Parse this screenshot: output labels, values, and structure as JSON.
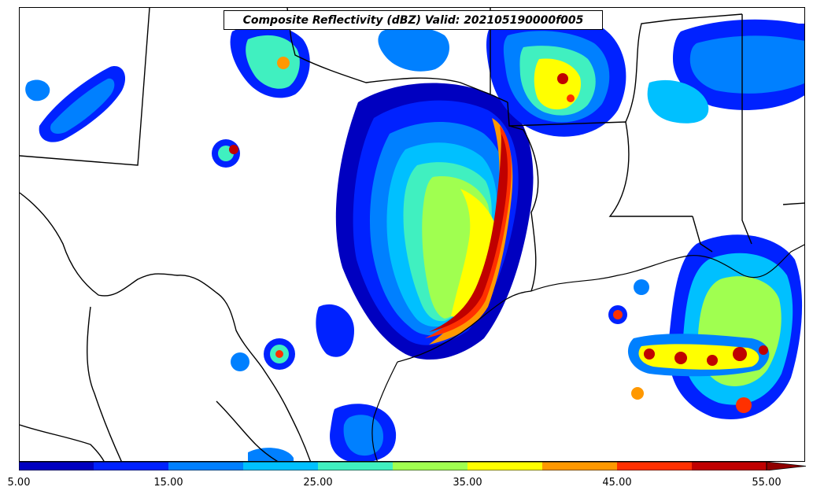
{
  "title": "Composite Reflectivity (dBZ) Valid: 202105190000f005",
  "colorbar": {
    "min": 5,
    "max": 60,
    "extend": "max",
    "bins": [
      {
        "from": 5,
        "to": 10,
        "color": "#0000c0"
      },
      {
        "from": 10,
        "to": 15,
        "color": "#0022ff"
      },
      {
        "from": 15,
        "to": 20,
        "color": "#0080ff"
      },
      {
        "from": 20,
        "to": 25,
        "color": "#00c0ff"
      },
      {
        "from": 25,
        "to": 30,
        "color": "#40f0c0"
      },
      {
        "from": 30,
        "to": 35,
        "color": "#a0ff50"
      },
      {
        "from": 35,
        "to": 40,
        "color": "#ffff00"
      },
      {
        "from": 40,
        "to": 45,
        "color": "#ff9800"
      },
      {
        "from": 45,
        "to": 50,
        "color": "#ff3000"
      },
      {
        "from": 50,
        "to": 55,
        "color": "#c00000"
      }
    ],
    "extend_color": "#900000",
    "ticks": [
      "5.00",
      "15.00",
      "25.00",
      "35.00",
      "45.00",
      "55.00"
    ]
  }
}
